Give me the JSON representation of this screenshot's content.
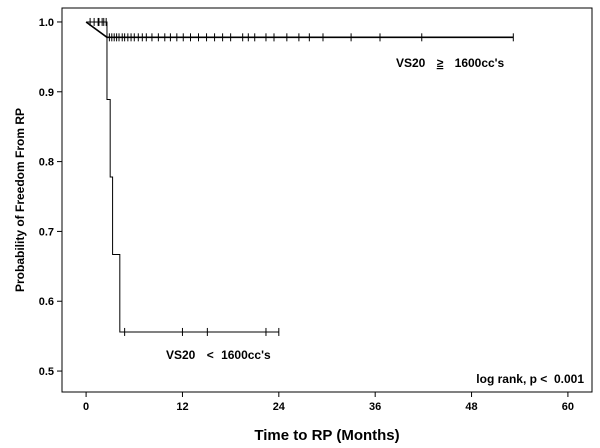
{
  "chart_data": {
    "type": "line",
    "subtype": "kaplan-meier",
    "xlabel": "Time to RP (Months)",
    "ylabel": "Probability of Freedom From RP",
    "xlim": [
      -3,
      63
    ],
    "ylim": [
      0.47,
      1.02
    ],
    "xticks": [
      0,
      12,
      24,
      36,
      48,
      60
    ],
    "yticks": [
      0.5,
      0.6,
      0.7,
      0.8,
      0.9,
      1.0
    ],
    "ytick_labels": [
      "0.5",
      "0.6",
      "0.7",
      "0.8",
      "0.9",
      "1.0"
    ],
    "grid": false,
    "colors": {
      "line": "#000000",
      "frame": "#000000",
      "background": "#ffffff"
    },
    "series": [
      {
        "name": "VS20 ≥ 1600cc's",
        "label_text": "VS20",
        "label_symbol": "≥",
        "label_value": "1600cc's",
        "steps": [
          [
            0,
            1.0
          ],
          [
            2.6,
            0.978
          ],
          [
            53.2,
            0.978
          ]
        ],
        "censored": [
          0.5,
          1.0,
          1.6,
          2.0,
          2.9,
          3.2,
          3.5,
          3.8,
          4.1,
          4.5,
          4.8,
          5.2,
          5.6,
          6.0,
          6.5,
          7.0,
          7.5,
          8.2,
          9.0,
          9.8,
          10.5,
          11.3,
          12.1,
          13.0,
          14.0,
          15.0,
          16.0,
          17.0,
          18.0,
          19.5,
          20.2,
          21.0,
          22.4,
          23.4,
          25.0,
          26.5,
          27.8,
          29.5,
          33.0,
          36.6,
          41.8,
          53.2
        ]
      },
      {
        "name": "VS20 < 1600cc's",
        "label_text": "VS20",
        "label_symbol": "<",
        "label_value": "1600cc's",
        "steps": [
          [
            0,
            1.0
          ],
          [
            2.6,
            1.0
          ],
          [
            2.6,
            0.889
          ],
          [
            3.0,
            0.889
          ],
          [
            3.0,
            0.778
          ],
          [
            3.3,
            0.778
          ],
          [
            3.3,
            0.667
          ],
          [
            4.2,
            0.667
          ],
          [
            4.2,
            0.556
          ],
          [
            24.0,
            0.556
          ]
        ],
        "censored": [
          1.5,
          2.2,
          2.5,
          4.8,
          12.0,
          15.1,
          22.4,
          24.0
        ]
      }
    ],
    "annotation": "log rank, p <  0.001"
  }
}
